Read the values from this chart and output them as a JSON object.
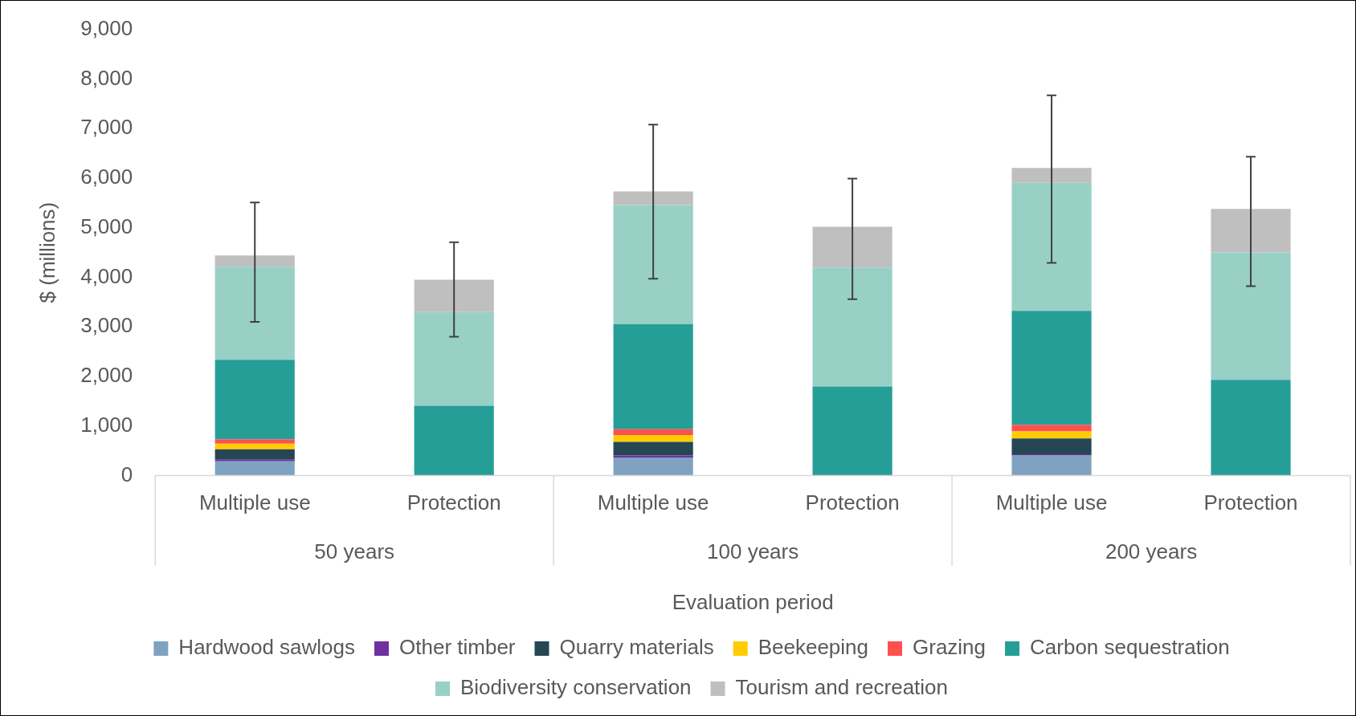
{
  "chart_data": {
    "type": "bar",
    "stacked": true,
    "xlabel": "Evaluation period",
    "ylabel": "$ (millions)",
    "categories": [
      "Multiple use",
      "Protection",
      "Multiple use",
      "Protection",
      "Multiple use",
      "Protection"
    ],
    "annotations": [
      "50 years",
      "100 years",
      "200 years"
    ],
    "ylim": [
      0,
      9000
    ],
    "yticks": [
      {
        "value": 0,
        "label": "0"
      },
      {
        "value": 1000,
        "label": "1,000"
      },
      {
        "value": 2000,
        "label": "2,000"
      },
      {
        "value": 3000,
        "label": "3,000"
      },
      {
        "value": 4000,
        "label": "4,000"
      },
      {
        "value": 5000,
        "label": "5,000"
      },
      {
        "value": 6000,
        "label": "6,000"
      },
      {
        "value": 7000,
        "label": "7,000"
      },
      {
        "value": 8000,
        "label": "8,000"
      },
      {
        "value": 9000,
        "label": "9,000"
      }
    ],
    "grid": false,
    "legend": "bottom",
    "series": [
      {
        "name": "Hardwood sawlogs",
        "color": "#7fa2c0",
        "values": [
          290,
          0,
          365,
          0,
          405,
          0
        ]
      },
      {
        "name": "Other timber",
        "color": "#7030a0",
        "values": [
          30,
          0,
          40,
          0,
          25,
          0
        ]
      },
      {
        "name": "Quarry materials",
        "color": "#264653",
        "values": [
          210,
          0,
          275,
          0,
          320,
          0
        ]
      },
      {
        "name": "Beekeeping",
        "color": "#ffcc00",
        "values": [
          115,
          0,
          140,
          0,
          140,
          0
        ]
      },
      {
        "name": "Grazing",
        "color": "#ff5050",
        "values": [
          90,
          0,
          115,
          0,
          135,
          0
        ]
      },
      {
        "name": "Carbon sequestration",
        "color": "#269e98",
        "values": [
          1600,
          1410,
          2120,
          1800,
          2300,
          1930
        ]
      },
      {
        "name": "Biodiversity conservation",
        "color": "#98d0c6",
        "values": [
          1880,
          1890,
          2400,
          2400,
          2580,
          2570
        ]
      },
      {
        "name": "Tourism and recreation",
        "color": "#bfbfbf",
        "values": [
          225,
          650,
          275,
          820,
          300,
          880
        ],
        "errors": [
          [
            3100,
            5510
          ],
          [
            2800,
            4710
          ],
          [
            3970,
            7080
          ],
          [
            3560,
            5990
          ],
          [
            4290,
            7670
          ],
          [
            3820,
            6430
          ]
        ]
      }
    ]
  }
}
